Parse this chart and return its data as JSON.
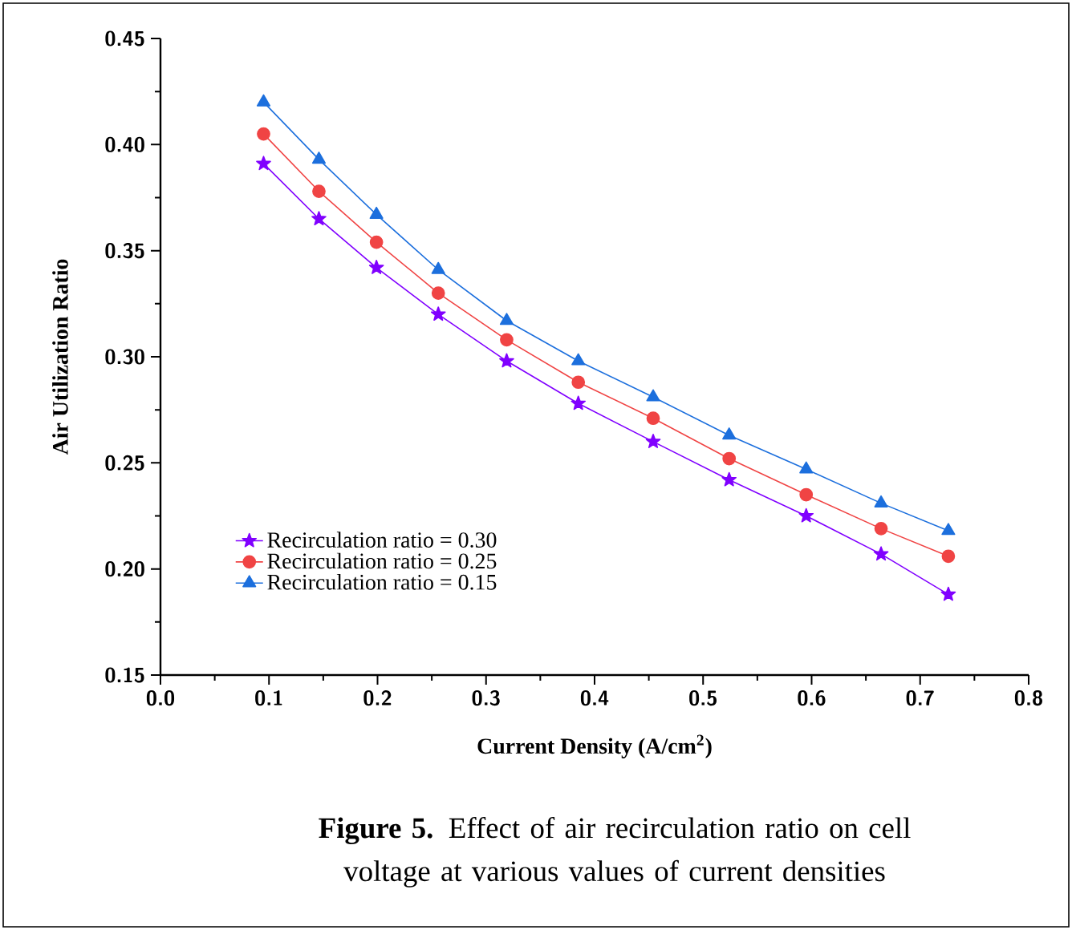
{
  "chart_data": {
    "type": "line",
    "xlabel": "Current Density (A/cm$^{2}$)",
    "ylabel": "Air Utilization Ratio",
    "annotations": [
      "**Figure 5.** Effect of air recirculation ratio on cell voltage at various values of current densities"
    ],
    "x": [
      0.095,
      0.146,
      0.199,
      0.256,
      0.319,
      0.385,
      0.454,
      0.524,
      0.595,
      0.664,
      0.726
    ],
    "series": [
      {
        "name": "Recirculation ratio = 0.30",
        "color": "#8000ff",
        "marker": "star",
        "values": [
          0.391,
          0.365,
          0.342,
          0.32,
          0.298,
          0.278,
          0.26,
          0.242,
          0.225,
          0.207,
          0.188
        ]
      },
      {
        "name": "Recirculation ratio = 0.25",
        "color": "#f04444",
        "marker": "circle",
        "values": [
          0.405,
          0.378,
          0.354,
          0.33,
          0.308,
          0.288,
          0.271,
          0.252,
          0.235,
          0.219,
          0.206
        ]
      },
      {
        "name": "Recirculation ratio = 0.15",
        "color": "#1c6fdd",
        "marker": "triangle",
        "values": [
          0.42,
          0.393,
          0.367,
          0.341,
          0.317,
          0.298,
          0.281,
          0.263,
          0.247,
          0.231,
          0.218
        ]
      }
    ],
    "xlim": [
      0,
      0.8
    ],
    "xticks": [
      {
        "value": 0,
        "label": "0.0"
      },
      0.1,
      0.2,
      0.3,
      0.4,
      0.5,
      0.6,
      0.7,
      0.8
    ],
    "ylim": [
      0.15,
      0.45
    ],
    "yticks": [
      0.15,
      {
        "value": 0.2,
        "label": "0.20"
      },
      0.25,
      {
        "value": 0.3,
        "label": "0.30"
      },
      0.35,
      {
        "value": 0.4,
        "label": "0.40"
      },
      0.45
    ],
    "legend": "bottom left",
    "grid": false
  }
}
